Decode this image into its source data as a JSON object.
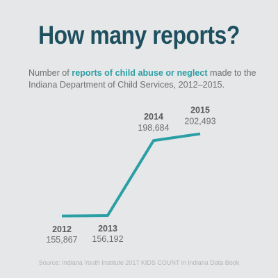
{
  "title": "How many reports?",
  "subtitle": {
    "before": "Number of ",
    "highlight": "reports of child abuse or neglect",
    "after": " made to the Indiana Department of Child Services, 2012–2015."
  },
  "source": "Source: Indiana Youth Institute 2017 KIDS COUNT in Indiana Data Book",
  "colors": {
    "line": "#2a9fa5",
    "title": "#1d4f5e",
    "year_label": "#58595b",
    "value_label": "#6d6e71",
    "background": "#e6e7e8"
  },
  "chart_data": {
    "type": "line",
    "x": [
      "2012",
      "2013",
      "2014",
      "2015"
    ],
    "values": [
      155867,
      156192,
      198684,
      202493
    ],
    "value_labels": [
      "155,867",
      "156,192",
      "198,684",
      "202,493"
    ],
    "label_positions": [
      "below",
      "below",
      "above",
      "above"
    ],
    "ylim": [
      155000,
      203500
    ],
    "grid": false
  }
}
